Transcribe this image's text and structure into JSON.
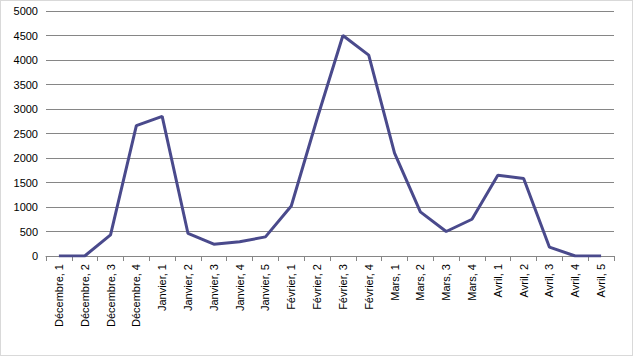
{
  "chart_data": {
    "type": "line",
    "categories": [
      "Décembre, 1",
      "Décembre, 2",
      "Décembre, 3",
      "Décembre, 4",
      "Janvier, 1",
      "Janvier, 2",
      "Janvier, 3",
      "Janvier, 4",
      "Janvier, 5",
      "Février, 1",
      "Février, 2",
      "Février, 3",
      "Février, 4",
      "Mars, 1",
      "Mars, 2",
      "Mars, 3",
      "Mars, 4",
      "Avril, 1",
      "Avril, 2",
      "Avril, 3",
      "Avril, 4",
      "Avril, 5"
    ],
    "values": [
      0,
      0,
      430,
      2660,
      2850,
      460,
      240,
      290,
      390,
      1020,
      2800,
      4500,
      4100,
      2100,
      900,
      500,
      750,
      1650,
      1580,
      180,
      0,
      0
    ],
    "color": "#4a4a8c",
    "marker": "none",
    "line_style": "solid",
    "ylim": [
      0,
      5000
    ],
    "yticks": [
      0,
      500,
      1000,
      1500,
      2000,
      2500,
      3000,
      3500,
      4000,
      4500,
      5000
    ],
    "grid": true
  }
}
